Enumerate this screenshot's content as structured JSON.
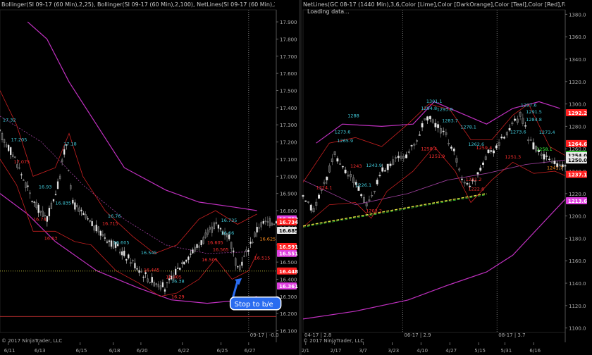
{
  "chart_data": [
    {
      "type": "candlestick",
      "title": "Bollinger(SI 09-17 (60 Min),2,25), Bollinger(SI 09-17 (60 Min),2,100), NetLines(SI 09-17 (60 Min),3,6,Color [Lime],Color [D",
      "copyright": "© 2017 NinjaTrader, LLC",
      "contract_label": "09-17 | -0.0",
      "x_ticks": [
        "6/11",
        "6/13",
        "6/15",
        "6/18",
        "6/20",
        "6/22",
        "6/25",
        "6/27"
      ],
      "y_ticks": [
        16.1,
        16.2,
        16.3,
        16.4,
        16.5,
        16.6,
        16.7,
        16.8,
        16.9,
        17.0,
        17.1,
        17.2,
        17.3,
        17.4,
        17.5,
        17.6,
        17.7,
        17.8,
        17.9
      ],
      "y_tick_labels": [
        "16.100",
        "16.200",
        "16.300",
        "16.400",
        "16.500",
        "16.600",
        "16.700",
        "16.800",
        "16.900",
        "17.000",
        "17.100",
        "17.200",
        "17.300",
        "17.400",
        "17.500",
        "17.600",
        "17.700",
        "17.800",
        "17.900"
      ],
      "ylim": [
        16.09,
        17.97
      ],
      "price_markers": [
        {
          "label": "16.752",
          "value": 16.752,
          "color": "#e040e0"
        },
        {
          "label": "16.734",
          "value": 16.734,
          "color": "#ff2020"
        },
        {
          "label": "16.685",
          "value": 16.685,
          "color": "#e8e8e8"
        },
        {
          "label": "16.591",
          "value": 16.591,
          "color": "#ff2020"
        },
        {
          "label": "16.551",
          "value": 16.551,
          "color": "#e040e0"
        },
        {
          "label": "16.448",
          "value": 16.448,
          "color": "#ff2020"
        },
        {
          "label": "16.361",
          "value": 16.361,
          "color": "#e040e0"
        }
      ],
      "level_labels": [
        {
          "text": "17.32",
          "x": 0.01,
          "y": 17.32,
          "color": "cyan"
        },
        {
          "text": "17.205",
          "x": 0.04,
          "y": 17.205,
          "color": "cyan"
        },
        {
          "text": "17.075",
          "x": 0.05,
          "y": 17.075,
          "color": "red"
        },
        {
          "text": "17.18",
          "x": 0.23,
          "y": 17.18,
          "color": "cyan"
        },
        {
          "text": "16.93",
          "x": 0.14,
          "y": 16.93,
          "color": "cyan"
        },
        {
          "text": "16.835",
          "x": 0.2,
          "y": 16.835,
          "color": "cyan"
        },
        {
          "text": "16.74",
          "x": 0.12,
          "y": 16.74,
          "color": "red"
        },
        {
          "text": "16.63",
          "x": 0.16,
          "y": 16.63,
          "color": "red"
        },
        {
          "text": "16.76",
          "x": 0.39,
          "y": 16.76,
          "color": "cyan"
        },
        {
          "text": "16.715",
          "x": 0.37,
          "y": 16.715,
          "color": "red"
        },
        {
          "text": "16.605",
          "x": 0.41,
          "y": 16.605,
          "color": "cyan"
        },
        {
          "text": "16.545",
          "x": 0.51,
          "y": 16.545,
          "color": "cyan"
        },
        {
          "text": "16.445",
          "x": 0.52,
          "y": 16.445,
          "color": "red"
        },
        {
          "text": "16.405",
          "x": 0.6,
          "y": 16.405,
          "color": "red"
        },
        {
          "text": "16.38",
          "x": 0.62,
          "y": 16.38,
          "color": "cyan"
        },
        {
          "text": "16.29",
          "x": 0.62,
          "y": 16.29,
          "color": "red"
        },
        {
          "text": "16.735",
          "x": 0.8,
          "y": 16.735,
          "color": "cyan"
        },
        {
          "text": "16.66",
          "x": 0.8,
          "y": 16.66,
          "color": "cyan"
        },
        {
          "text": "16.605",
          "x": 0.75,
          "y": 16.605,
          "color": "red"
        },
        {
          "text": "16.565",
          "x": 0.77,
          "y": 16.565,
          "color": "red"
        },
        {
          "text": "16.505",
          "x": 0.73,
          "y": 16.505,
          "color": "red"
        },
        {
          "text": "16.515",
          "x": 0.92,
          "y": 16.515,
          "color": "red"
        },
        {
          "text": "16.625",
          "x": 0.94,
          "y": 16.625,
          "color": "orange"
        }
      ],
      "annotations": [
        {
          "text": "Stop to b/e",
          "x": 0.93,
          "y": 16.255
        }
      ]
    },
    {
      "type": "candlestick",
      "title": "NetLines(GC 08-17 (1440 Min),3,6,Color [Lime],Color [DarkOrange],Color [Teal],Color [Red],False,True,True), Bolli",
      "status_text": "Loading data...",
      "copyright": "© 2017 NinjaTrader, LLC",
      "contract_labels": [
        "04-17 | 2.8",
        "06-17 | 2.9",
        "08-17 | 3.7"
      ],
      "x_ticks": [
        "2/1",
        "2/17",
        "3/7",
        "3/23",
        "4/10",
        "4/27",
        "5/15",
        "5/31",
        "6/16"
      ],
      "y_ticks": [
        1100,
        1120,
        1140,
        1160,
        1180,
        1200,
        1220,
        1240,
        1260,
        1280,
        1300,
        1320,
        1340,
        1360,
        1380
      ],
      "y_tick_labels": [
        "1100.0",
        "1120.0",
        "1140.0",
        "1160.0",
        "1180.0",
        "1200.0",
        "1220.0",
        "1240.0",
        "1260.0",
        "1280.0",
        "1300.0",
        "1320.0",
        "1340.0",
        "1360.0",
        "1380.0"
      ],
      "ylim": [
        1096,
        1384
      ],
      "price_markers": [
        {
          "label": "1292.2",
          "value": 1292.2,
          "color": "#ff2020"
        },
        {
          "label": "1264.6",
          "value": 1264.6,
          "color": "#ff2020"
        },
        {
          "label": "1255.0",
          "value": 1255.0,
          "color": "#20c020"
        },
        {
          "label": "1254.0",
          "value": 1254.0,
          "color": "#e8e8e8"
        },
        {
          "label": "1250.0",
          "value": 1250.0,
          "color": "#e8e8e8"
        },
        {
          "label": "1237.1",
          "value": 1237.1,
          "color": "#ff2020"
        },
        {
          "label": "1213.6",
          "value": 1213.6,
          "color": "#e040e0"
        }
      ],
      "level_labels": [
        {
          "text": "1301.1",
          "x": 0.47,
          "y": 1301.1,
          "color": "cyan"
        },
        {
          "text": "1294.8",
          "x": 0.45,
          "y": 1294.8,
          "color": "cyan"
        },
        {
          "text": "1293.8",
          "x": 0.51,
          "y": 1293.8,
          "color": "cyan"
        },
        {
          "text": "1283.7",
          "x": 0.53,
          "y": 1283.7,
          "color": "cyan"
        },
        {
          "text": "1278.1",
          "x": 0.6,
          "y": 1278.1,
          "color": "cyan"
        },
        {
          "text": "1297.6",
          "x": 0.83,
          "y": 1297.6,
          "color": "cyan"
        },
        {
          "text": "1291.5",
          "x": 0.85,
          "y": 1291.5,
          "color": "cyan"
        },
        {
          "text": "1284.8",
          "x": 0.85,
          "y": 1284.8,
          "color": "cyan"
        },
        {
          "text": "1273.6",
          "x": 0.79,
          "y": 1273.6,
          "color": "cyan"
        },
        {
          "text": "1273.4",
          "x": 0.9,
          "y": 1273.4,
          "color": "cyan"
        },
        {
          "text": "1273.6",
          "x": 0.12,
          "y": 1273.6,
          "color": "cyan"
        },
        {
          "text": "1265.9",
          "x": 0.13,
          "y": 1265.9,
          "color": "cyan"
        },
        {
          "text": "1262.6",
          "x": 0.63,
          "y": 1262.6,
          "color": "cyan"
        },
        {
          "text": "1258.4",
          "x": 0.45,
          "y": 1258.4,
          "color": "red"
        },
        {
          "text": "1259.4",
          "x": 0.66,
          "y": 1259.4,
          "color": "red"
        },
        {
          "text": "1258.1",
          "x": 0.89,
          "y": 1258.1,
          "color": "lime"
        },
        {
          "text": "1288",
          "x": 0.17,
          "y": 1288,
          "color": "cyan"
        },
        {
          "text": "1251.9",
          "x": 0.48,
          "y": 1251.9,
          "color": "red"
        },
        {
          "text": "1251.3",
          "x": 0.77,
          "y": 1251.3,
          "color": "red"
        },
        {
          "text": "1243.9",
          "x": 0.24,
          "y": 1243.9,
          "color": "cyan"
        },
        {
          "text": "1243",
          "x": 0.18,
          "y": 1243,
          "color": "red"
        },
        {
          "text": "1241.7",
          "x": 0.93,
          "y": 1241.7,
          "color": "orange"
        },
        {
          "text": "1224.1",
          "x": 0.05,
          "y": 1224.1,
          "color": "red"
        },
        {
          "text": "1226.1",
          "x": 0.2,
          "y": 1226.1,
          "color": "cyan"
        },
        {
          "text": "1203.2",
          "x": 0.24,
          "y": 1203.2,
          "color": "red"
        },
        {
          "text": "1231.2",
          "x": 0.62,
          "y": 1231.2,
          "color": "red"
        },
        {
          "text": "1222.6",
          "x": 0.63,
          "y": 1222.6,
          "color": "red"
        }
      ]
    }
  ]
}
